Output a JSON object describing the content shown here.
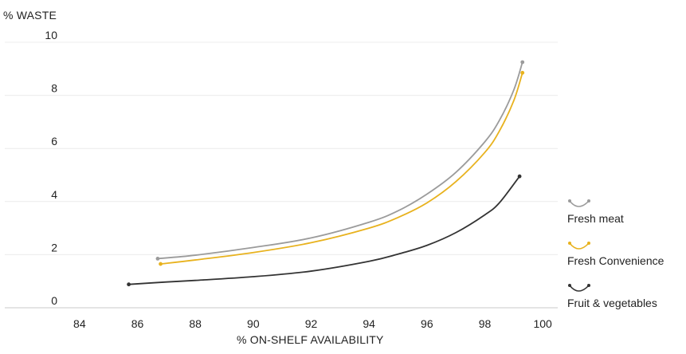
{
  "chart_data": {
    "type": "line",
    "title": "",
    "xlabel": "% ON-SHELF AVAILABILITY",
    "ylabel": "% WASTE",
    "xlim": [
      83,
      101
    ],
    "ylim": [
      0,
      10
    ],
    "x_ticks": [
      "84",
      "86",
      "88",
      "90",
      "92",
      "94",
      "96",
      "98",
      "100"
    ],
    "y_ticks": [
      "0",
      "2",
      "4",
      "6",
      "8",
      "10"
    ],
    "grid": "horizontal",
    "legend_position": "right",
    "series": [
      {
        "name": "Fresh meat",
        "color": "#9b9b9b",
        "points": [
          [
            86.7,
            1.85
          ],
          [
            88,
            1.98
          ],
          [
            90,
            2.27
          ],
          [
            92,
            2.63
          ],
          [
            94,
            3.22
          ],
          [
            95,
            3.65
          ],
          [
            96,
            4.28
          ],
          [
            97,
            5.1
          ],
          [
            98,
            6.25
          ],
          [
            98.5,
            7.05
          ],
          [
            99,
            8.2
          ],
          [
            99.3,
            9.25
          ]
        ]
      },
      {
        "name": "Fresh Convenience",
        "color": "#e8b21e",
        "points": [
          [
            86.8,
            1.65
          ],
          [
            88,
            1.8
          ],
          [
            90,
            2.08
          ],
          [
            92,
            2.45
          ],
          [
            94,
            3.0
          ],
          [
            95,
            3.4
          ],
          [
            96,
            3.95
          ],
          [
            97,
            4.75
          ],
          [
            98,
            5.85
          ],
          [
            98.5,
            6.65
          ],
          [
            99,
            7.8
          ],
          [
            99.3,
            8.85
          ]
        ]
      },
      {
        "name": "Fruit & vegetables",
        "color": "#333333",
        "points": [
          [
            85.7,
            0.88
          ],
          [
            87,
            0.97
          ],
          [
            88,
            1.03
          ],
          [
            90,
            1.17
          ],
          [
            92,
            1.38
          ],
          [
            94,
            1.75
          ],
          [
            95,
            2.02
          ],
          [
            96,
            2.35
          ],
          [
            97,
            2.83
          ],
          [
            98,
            3.5
          ],
          [
            98.5,
            3.95
          ],
          [
            99.2,
            4.95
          ]
        ]
      }
    ]
  }
}
